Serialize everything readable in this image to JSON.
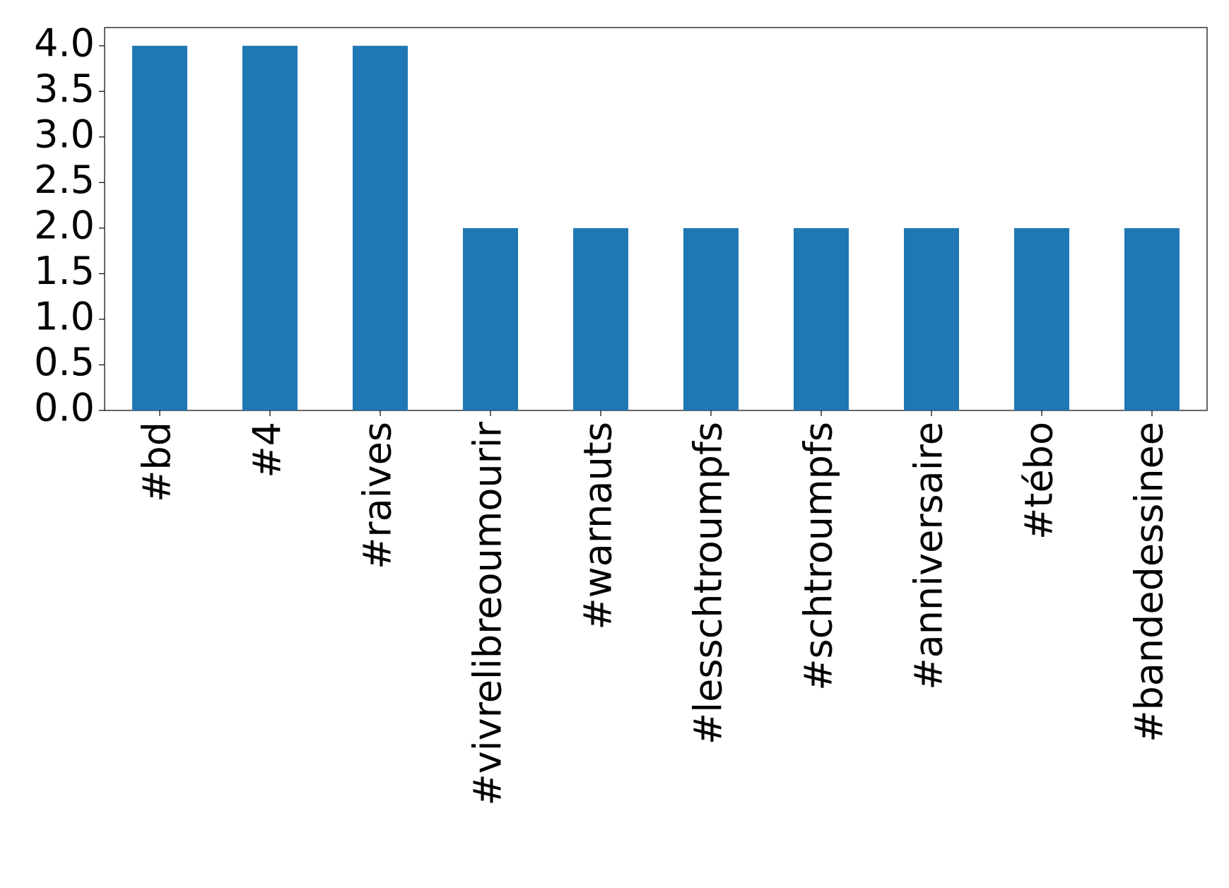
{
  "chart_data": {
    "type": "bar",
    "categories": [
      "#bd",
      "#4",
      "#raives",
      "#vivrelibreoumourir",
      "#warnauts",
      "#lesschtroumpfs",
      "#schtroumpfs",
      "#anniversaire",
      "#tébo",
      "#bandedessinee"
    ],
    "values": [
      4,
      4,
      4,
      2,
      2,
      2,
      2,
      2,
      2,
      2
    ],
    "color": "#1f77b4",
    "ylim": [
      0,
      4.2
    ],
    "yticks": [
      {
        "value": 0,
        "label": "0.0"
      },
      {
        "value": 0.5,
        "label": "0.5"
      },
      {
        "value": 1,
        "label": "1.0"
      },
      {
        "value": 1.5,
        "label": "1.5"
      },
      {
        "value": 2,
        "label": "2.0"
      },
      {
        "value": 2.5,
        "label": "2.5"
      },
      {
        "value": 3,
        "label": "3.0"
      },
      {
        "value": 3.5,
        "label": "3.5"
      },
      {
        "value": 4,
        "label": "4.0"
      }
    ],
    "grid": false
  }
}
